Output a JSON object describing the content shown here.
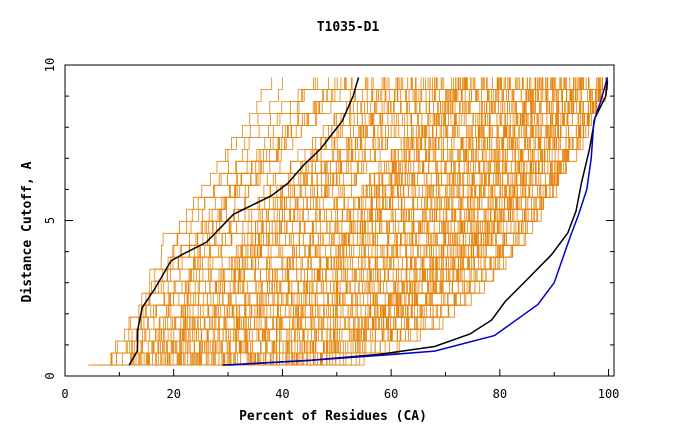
{
  "chart_data": {
    "type": "line",
    "title": "T1035-D1",
    "xlabel": "Percent of Residues (CA)",
    "ylabel": "Distance Cutoff, A",
    "xlim": [
      0,
      101
    ],
    "ylim": [
      0,
      10
    ],
    "x_ticks": [
      "0",
      "20",
      "40",
      "60",
      "80",
      "100"
    ],
    "x_tick_values": [
      0,
      20,
      40,
      60,
      80,
      100
    ],
    "y_ticks": [
      "0",
      "5",
      "10"
    ],
    "y_tick_values": [
      0,
      5,
      10
    ],
    "grid": false,
    "background_series_count": 180,
    "background_color": "#e5830c",
    "highlight_series": [
      {
        "color": "#000000",
        "values": [
          [
            11.8,
            0.35
          ],
          [
            13.3,
            0.8
          ],
          [
            13.4,
            1.5
          ],
          [
            14.2,
            2.2
          ],
          [
            16.5,
            2.8
          ],
          [
            19.5,
            3.7
          ],
          [
            21.5,
            3.9
          ],
          [
            26,
            4.3
          ],
          [
            31,
            5.2
          ],
          [
            38,
            5.8
          ],
          [
            41,
            6.2
          ],
          [
            44,
            6.8
          ],
          [
            47,
            7.3
          ],
          [
            51,
            8.2
          ],
          [
            53,
            9.0
          ],
          [
            54,
            9.6
          ]
        ]
      },
      {
        "color": "#000000",
        "values": [
          [
            29,
            0.35
          ],
          [
            45,
            0.5
          ],
          [
            58,
            0.7
          ],
          [
            68,
            0.95
          ],
          [
            74.5,
            1.35
          ],
          [
            78.5,
            1.8
          ],
          [
            81,
            2.4
          ],
          [
            85,
            3.1
          ],
          [
            89.5,
            3.9
          ],
          [
            92.5,
            4.6
          ],
          [
            94,
            5.3
          ],
          [
            95,
            6.2
          ],
          [
            96.5,
            7.3
          ],
          [
            97.5,
            8.3
          ],
          [
            99.5,
            9.0
          ],
          [
            99.8,
            9.5
          ]
        ]
      },
      {
        "color": "#0000cc",
        "values": [
          [
            30,
            0.35
          ],
          [
            45,
            0.5
          ],
          [
            57,
            0.65
          ],
          [
            68,
            0.8
          ],
          [
            79,
            1.3
          ],
          [
            87,
            2.3
          ],
          [
            90,
            3.0
          ],
          [
            93,
            4.5
          ],
          [
            94.5,
            5.2
          ],
          [
            96,
            6.0
          ],
          [
            96.8,
            7.0
          ],
          [
            97.3,
            8.2
          ],
          [
            98.5,
            8.8
          ],
          [
            99.8,
            9.6
          ]
        ]
      }
    ]
  }
}
